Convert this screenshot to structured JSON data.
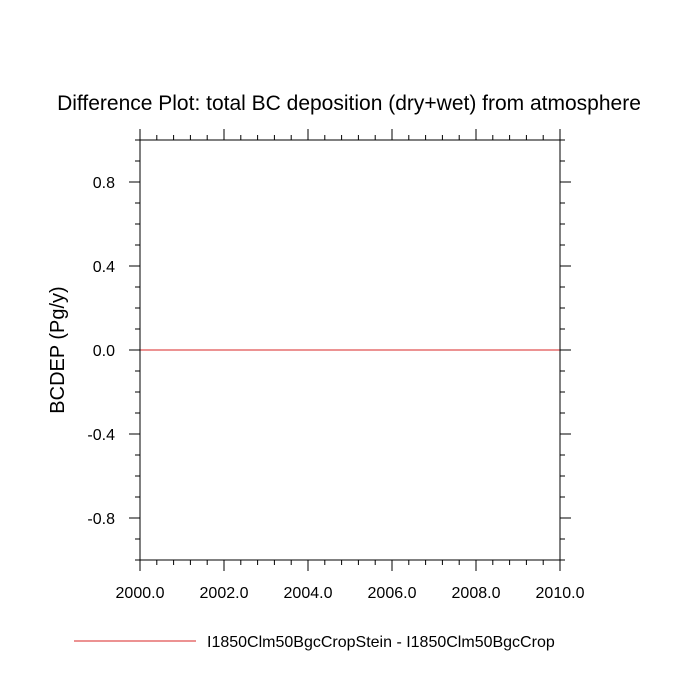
{
  "chart_data": {
    "type": "line",
    "title": "Difference Plot: total BC deposition (dry+wet) from atmosphere",
    "xlabel": "",
    "ylabel": "BCDEP  (Pg/y)",
    "xlim": [
      2000.0,
      2010.0
    ],
    "ylim": [
      -1.0,
      1.0
    ],
    "xticks": [
      2000.0,
      2002.0,
      2004.0,
      2006.0,
      2008.0,
      2010.0
    ],
    "xtick_labels": [
      "2000.0",
      "2002.0",
      "2004.0",
      "2006.0",
      "2008.0",
      "2010.0"
    ],
    "yticks": [
      0.8,
      0.4,
      0.0,
      -0.4,
      -0.8
    ],
    "ytick_labels": [
      "0.8",
      "0.4",
      "0.0",
      "-0.4",
      "-0.8"
    ],
    "y_minor_step": 0.1,
    "x_minor_step": 0.4,
    "grid": false,
    "legend_position": "bottom",
    "series": [
      {
        "name": "I1850Clm50BgcCropStein - I1850Clm50BgcCrop",
        "color": "#e05050",
        "x": [
          2000.0,
          2010.0
        ],
        "y": [
          0.0,
          0.0
        ]
      }
    ]
  }
}
